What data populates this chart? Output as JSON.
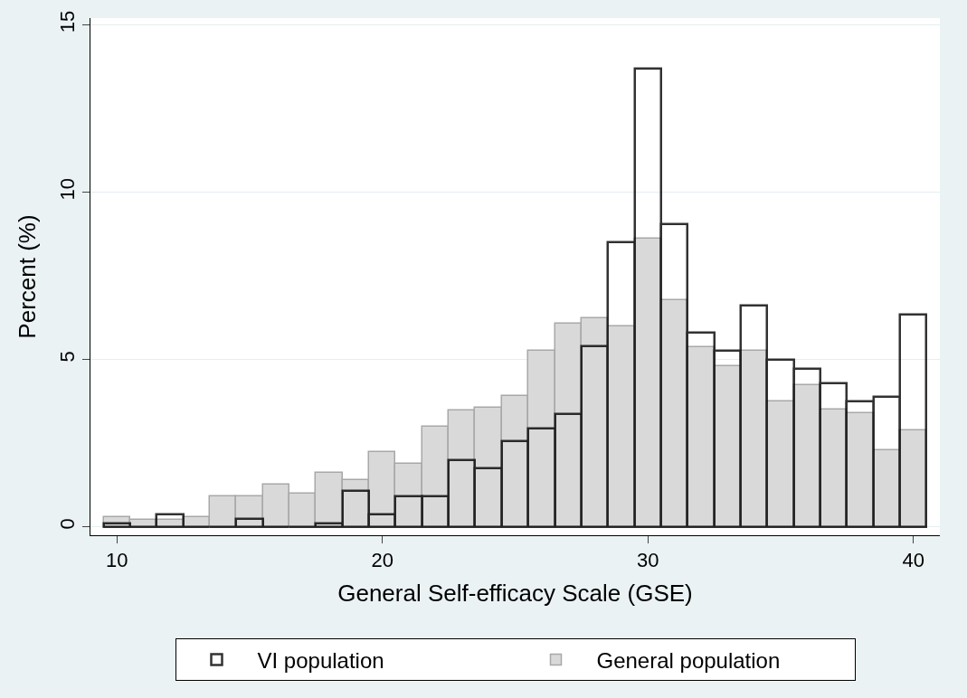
{
  "chart_data": {
    "type": "histogram",
    "xlabel": "General Self-efficacy Scale (GSE)",
    "ylabel": "Percent (%)",
    "bins": [
      9.5,
      10.5,
      11.5,
      12.5,
      13.5,
      14.5,
      15.5,
      16.5,
      17.5,
      18.5,
      19.5,
      20.5,
      21.5,
      22.5,
      23.5,
      24.5,
      25.5,
      26.5,
      27.5,
      28.5,
      29.5,
      30.5,
      31.5,
      32.5,
      33.5,
      34.5,
      35.5,
      36.5,
      37.5,
      38.5,
      39.5,
      40.5
    ],
    "series": [
      {
        "name": "VI population",
        "color": "#000000",
        "values": [
          0.1,
          0,
          0.38,
          0,
          0,
          0.24,
          0,
          0,
          0.1,
          1.07,
          0.38,
          0.91,
          0.91,
          2.0,
          1.74,
          2.55,
          2.95,
          3.36,
          5.39,
          8.5,
          13.7,
          9.05,
          5.8,
          5.26,
          6.62,
          4.99,
          4.72,
          4.3,
          3.75,
          3.88,
          6.35
        ]
      },
      {
        "name": "General population",
        "color": "#d9d9d9",
        "values": [
          0.29,
          0.2,
          0.2,
          0.29,
          0.92,
          0.92,
          1.27,
          0.98,
          1.62,
          1.39,
          2.24,
          1.89,
          2.99,
          3.49,
          3.55,
          3.9,
          5.27,
          6.07,
          6.23,
          6.0,
          8.6,
          6.76,
          5.38,
          4.81,
          5.27,
          3.74,
          4.24,
          3.5,
          3.39,
          2.3,
          2.87
        ]
      }
    ],
    "xlim": [
      9,
      41
    ],
    "xticks": [
      10,
      20,
      30,
      40
    ],
    "ylim": [
      -0.25,
      15.2
    ],
    "yticks": [
      0,
      5,
      10,
      15
    ],
    "grid": "y",
    "legend": "bottom"
  }
}
